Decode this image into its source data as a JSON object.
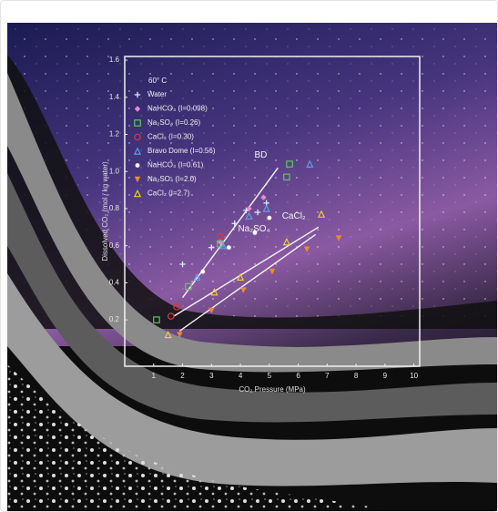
{
  "chart_data": {
    "type": "scatter",
    "annotation": "60° C",
    "x_label": "CO₂ Pressure (MPa)",
    "y_label": "Dissolved CO₂ (mol / kg water)",
    "xlim": [
      0,
      10.2
    ],
    "ylim": [
      -0.05,
      1.62
    ],
    "xticks": [
      1,
      2,
      3,
      4,
      5,
      6,
      7,
      8,
      9,
      10
    ],
    "yticks": [
      0.2,
      0.4,
      0.6,
      0.8,
      {
        "value": 1,
        "label": "1.0"
      },
      1.2,
      1.4,
      1.6
    ],
    "series": [
      {
        "name": "Water",
        "color": "#dde6ff",
        "marker": "plus",
        "x": [
          2.0,
          3.0,
          3.8,
          4.2,
          4.6,
          4.9
        ],
        "y": [
          0.5,
          0.59,
          0.72,
          0.79,
          0.78,
          0.83
        ]
      },
      {
        "name": "NaHCO₃ (I=0.098)",
        "color": "#e58ad8",
        "marker": "diamond",
        "x": [
          3.3,
          4.3,
          4.8
        ],
        "y": [
          0.62,
          0.8,
          0.86
        ]
      },
      {
        "name": "Na₂SO₄ (I=0.26)",
        "color": "#5fc65a",
        "marker": "square",
        "x": [
          1.1,
          2.2,
          3.3,
          5.6,
          5.7
        ],
        "y": [
          0.2,
          0.38,
          0.61,
          0.97,
          1.04
        ]
      },
      {
        "name": "CaCl₂ (I=0.30)",
        "color": "#e0363c",
        "marker": "circle",
        "x": [
          1.6,
          1.8,
          3.3
        ],
        "y": [
          0.22,
          0.27,
          0.65
        ]
      },
      {
        "name": "Bravo Dome (I=0.56)",
        "color": "#5aa8f0",
        "marker": "triangle",
        "x": [
          2.5,
          3.4,
          4.3,
          4.9,
          6.4
        ],
        "y": [
          0.43,
          0.6,
          0.76,
          0.8,
          1.04
        ]
      },
      {
        "name": "NaHCO₃ (I=0.61)",
        "color": "#ffffff",
        "marker": "dot",
        "x": [
          2.7,
          3.6,
          4.5,
          5.0
        ],
        "y": [
          0.46,
          0.59,
          0.67,
          0.75
        ]
      },
      {
        "name": "Na₂SO₄ (I=2.0)",
        "color": "#f08a2a",
        "marker": "down",
        "x": [
          1.9,
          3.0,
          4.1,
          5.1,
          6.3,
          7.4
        ],
        "y": [
          0.12,
          0.25,
          0.36,
          0.46,
          0.58,
          0.64
        ]
      },
      {
        "name": "CaCl₂ (I=2.7)",
        "color": "#f2d62a",
        "marker": "triangle",
        "x": [
          1.5,
          3.1,
          4.0,
          5.6,
          6.8
        ],
        "y": [
          0.12,
          0.35,
          0.43,
          0.62,
          0.77
        ]
      }
    ],
    "fit_lines": [
      {
        "label": "BD",
        "x": [
          2.0,
          5.3
        ],
        "y": [
          0.32,
          1.02
        ]
      },
      {
        "label": "CaCl₂",
        "x": [
          1.7,
          6.7
        ],
        "y": [
          0.22,
          0.7
        ]
      },
      {
        "label": "Na₂SO₄",
        "x": [
          1.9,
          6.6
        ],
        "y": [
          0.14,
          0.66
        ]
      }
    ]
  }
}
